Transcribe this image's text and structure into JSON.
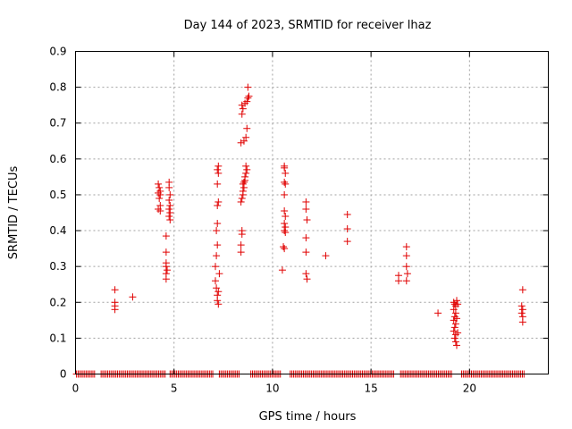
{
  "chart_data": {
    "type": "scatter",
    "title": "Day 144 of 2023, SRMTID for receiver lhaz",
    "xlabel": "GPS time / hours",
    "ylabel": "SRMTID / TECUs",
    "xlim": [
      0,
      24
    ],
    "ylim": [
      0,
      0.9
    ],
    "xticks": [
      0,
      5,
      10,
      15,
      20
    ],
    "yticks": [
      0,
      0.1,
      0.2,
      0.3,
      0.4,
      0.5,
      0.6,
      0.7,
      0.8,
      0.9
    ],
    "grid": true,
    "marker": "+",
    "color": "#e00000",
    "zero_baseline_ranges": [
      [
        0.05,
        1.0
      ],
      [
        1.3,
        4.6
      ],
      [
        4.8,
        7.0
      ],
      [
        7.3,
        8.3
      ],
      [
        8.9,
        10.4
      ],
      [
        10.9,
        16.2
      ],
      [
        16.5,
        19.1
      ],
      [
        19.6,
        22.8
      ]
    ],
    "points": [
      [
        2.0,
        0.235
      ],
      [
        2.0,
        0.2
      ],
      [
        2.0,
        0.19
      ],
      [
        2.0,
        0.18
      ],
      [
        2.9,
        0.215
      ],
      [
        4.2,
        0.53
      ],
      [
        4.25,
        0.52
      ],
      [
        4.3,
        0.51
      ],
      [
        4.2,
        0.505
      ],
      [
        4.3,
        0.5
      ],
      [
        4.25,
        0.49
      ],
      [
        4.3,
        0.47
      ],
      [
        4.2,
        0.46
      ],
      [
        4.3,
        0.455
      ],
      [
        4.6,
        0.34
      ],
      [
        4.6,
        0.31
      ],
      [
        4.6,
        0.3
      ],
      [
        4.65,
        0.29
      ],
      [
        4.6,
        0.28
      ],
      [
        4.6,
        0.265
      ],
      [
        4.6,
        0.385
      ],
      [
        4.75,
        0.535
      ],
      [
        4.75,
        0.52
      ],
      [
        4.8,
        0.5
      ],
      [
        4.75,
        0.485
      ],
      [
        4.8,
        0.47
      ],
      [
        4.75,
        0.46
      ],
      [
        4.8,
        0.45
      ],
      [
        4.75,
        0.44
      ],
      [
        4.8,
        0.43
      ],
      [
        7.1,
        0.26
      ],
      [
        7.15,
        0.24
      ],
      [
        7.2,
        0.22
      ],
      [
        7.2,
        0.205
      ],
      [
        7.25,
        0.195
      ],
      [
        7.1,
        0.3
      ],
      [
        7.15,
        0.33
      ],
      [
        7.2,
        0.36
      ],
      [
        7.3,
        0.28
      ],
      [
        7.25,
        0.23
      ],
      [
        7.15,
        0.4
      ],
      [
        7.2,
        0.42
      ],
      [
        7.2,
        0.47
      ],
      [
        7.25,
        0.48
      ],
      [
        7.2,
        0.53
      ],
      [
        7.25,
        0.56
      ],
      [
        7.2,
        0.57
      ],
      [
        7.25,
        0.58
      ],
      [
        8.4,
        0.34
      ],
      [
        8.4,
        0.36
      ],
      [
        8.45,
        0.39
      ],
      [
        8.45,
        0.4
      ],
      [
        8.4,
        0.48
      ],
      [
        8.45,
        0.49
      ],
      [
        8.5,
        0.5
      ],
      [
        8.5,
        0.51
      ],
      [
        8.55,
        0.52
      ],
      [
        8.5,
        0.53
      ],
      [
        8.55,
        0.535
      ],
      [
        8.6,
        0.54
      ],
      [
        8.6,
        0.55
      ],
      [
        8.65,
        0.56
      ],
      [
        8.7,
        0.57
      ],
      [
        8.65,
        0.58
      ],
      [
        8.4,
        0.645
      ],
      [
        8.55,
        0.65
      ],
      [
        8.65,
        0.66
      ],
      [
        8.7,
        0.685
      ],
      [
        8.45,
        0.725
      ],
      [
        8.5,
        0.74
      ],
      [
        8.45,
        0.75
      ],
      [
        8.6,
        0.755
      ],
      [
        8.7,
        0.76
      ],
      [
        8.75,
        0.77
      ],
      [
        8.8,
        0.775
      ],
      [
        8.75,
        0.8
      ],
      [
        10.6,
        0.58
      ],
      [
        10.6,
        0.575
      ],
      [
        10.65,
        0.56
      ],
      [
        10.6,
        0.535
      ],
      [
        10.65,
        0.53
      ],
      [
        10.6,
        0.5
      ],
      [
        10.6,
        0.455
      ],
      [
        10.65,
        0.44
      ],
      [
        10.6,
        0.42
      ],
      [
        10.65,
        0.41
      ],
      [
        10.6,
        0.4
      ],
      [
        10.65,
        0.395
      ],
      [
        10.55,
        0.355
      ],
      [
        10.6,
        0.35
      ],
      [
        10.5,
        0.29
      ],
      [
        11.7,
        0.48
      ],
      [
        11.7,
        0.46
      ],
      [
        11.75,
        0.43
      ],
      [
        11.7,
        0.38
      ],
      [
        11.7,
        0.34
      ],
      [
        11.7,
        0.28
      ],
      [
        11.75,
        0.265
      ],
      [
        12.7,
        0.33
      ],
      [
        13.8,
        0.445
      ],
      [
        13.8,
        0.405
      ],
      [
        13.8,
        0.37
      ],
      [
        16.4,
        0.275
      ],
      [
        16.4,
        0.26
      ],
      [
        16.8,
        0.355
      ],
      [
        16.8,
        0.33
      ],
      [
        16.8,
        0.3
      ],
      [
        16.85,
        0.28
      ],
      [
        16.8,
        0.26
      ],
      [
        18.4,
        0.17
      ],
      [
        19.2,
        0.2
      ],
      [
        19.25,
        0.195
      ],
      [
        19.3,
        0.19
      ],
      [
        19.2,
        0.18
      ],
      [
        19.3,
        0.17
      ],
      [
        19.25,
        0.16
      ],
      [
        19.2,
        0.15
      ],
      [
        19.3,
        0.14
      ],
      [
        19.25,
        0.13
      ],
      [
        19.2,
        0.12
      ],
      [
        19.3,
        0.11
      ],
      [
        19.25,
        0.1
      ],
      [
        19.3,
        0.09
      ],
      [
        19.35,
        0.08
      ],
      [
        19.4,
        0.115
      ],
      [
        19.35,
        0.155
      ],
      [
        19.4,
        0.195
      ],
      [
        19.35,
        0.205
      ],
      [
        22.7,
        0.235
      ],
      [
        22.65,
        0.19
      ],
      [
        22.7,
        0.18
      ],
      [
        22.65,
        0.17
      ],
      [
        22.7,
        0.16
      ],
      [
        22.7,
        0.145
      ]
    ]
  }
}
